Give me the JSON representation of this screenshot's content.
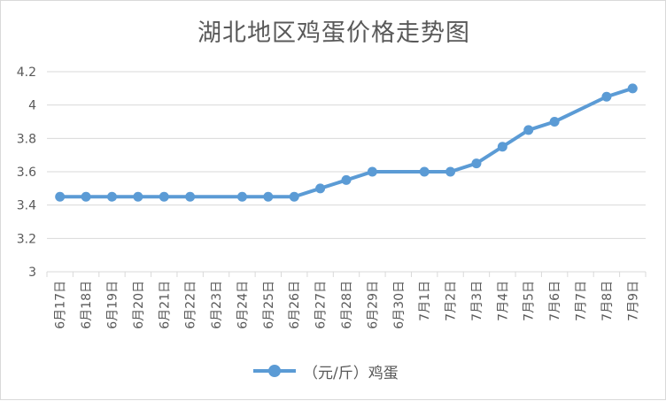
{
  "chart_data": {
    "type": "line",
    "title": "湖北地区鸡蛋价格走势图",
    "categories": [
      "6月17日",
      "6月18日",
      "6月19日",
      "6月20日",
      "6月21日",
      "6月22日",
      "6月23日",
      "6月24日",
      "6月25日",
      "6月26日",
      "6月27日",
      "6月28日",
      "6月29日",
      "6月30日",
      "7月1日",
      "7月2日",
      "7月3日",
      "7月4日",
      "7月5日",
      "7月6日",
      "7月7日",
      "7月8日",
      "7月9日"
    ],
    "series": [
      {
        "name": "（元/斤）鸡蛋",
        "values": [
          3.45,
          3.45,
          3.45,
          3.45,
          3.45,
          3.45,
          null,
          3.45,
          3.45,
          3.45,
          3.5,
          3.55,
          3.6,
          null,
          3.6,
          3.6,
          3.65,
          3.75,
          3.85,
          3.9,
          null,
          4.05,
          4.1
        ],
        "color": "#5b9bd5"
      }
    ],
    "ylim": [
      3,
      4.2
    ],
    "yticks": [
      "3",
      "3.2",
      "3.4",
      "3.6",
      "3.8",
      "4",
      "4.2"
    ],
    "ytick_values": [
      3,
      3.2,
      3.4,
      3.6,
      3.8,
      4,
      4.2
    ],
    "grid": true,
    "legend": "bottom",
    "xlabel": "",
    "ylabel": ""
  }
}
